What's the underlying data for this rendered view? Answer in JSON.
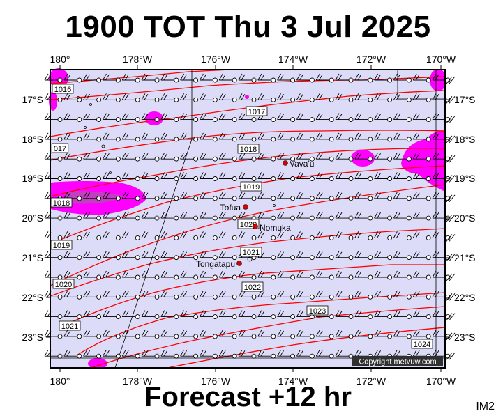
{
  "title": "1900 TOT Thu 3 Jul 2025",
  "footer": "Forecast +12 hr",
  "code": "IM2",
  "copyright": "Copyright metvuw.com",
  "lon_labels": [
    "180°",
    "178°W",
    "176°W",
    "174°W",
    "172°W",
    "170°W"
  ],
  "lat_labels": [
    "17°S",
    "18°S",
    "19°S",
    "20°S",
    "21°S",
    "22°S",
    "23°S"
  ],
  "isobars": [
    "1016",
    "1017",
    "017",
    "1018",
    "1019",
    "1018",
    "1019",
    "1020",
    "1021",
    "1020",
    "1022",
    "1021",
    "1023",
    "1024"
  ],
  "places": [
    {
      "name": "Vava'u"
    },
    {
      "name": "Tofua"
    },
    {
      "name": "Nomuka"
    },
    {
      "name": "Tongatapu"
    }
  ],
  "colors": {
    "background_fill": "#dcdcf8",
    "rain_high": "#ff00ff",
    "rain_mid": "#c040c0",
    "isobar": "#ff0000",
    "place_dot": "#dd0000"
  },
  "icons": {
    "wind_barb": "wind-barb-icon",
    "place_marker": "red-dot-icon"
  }
}
